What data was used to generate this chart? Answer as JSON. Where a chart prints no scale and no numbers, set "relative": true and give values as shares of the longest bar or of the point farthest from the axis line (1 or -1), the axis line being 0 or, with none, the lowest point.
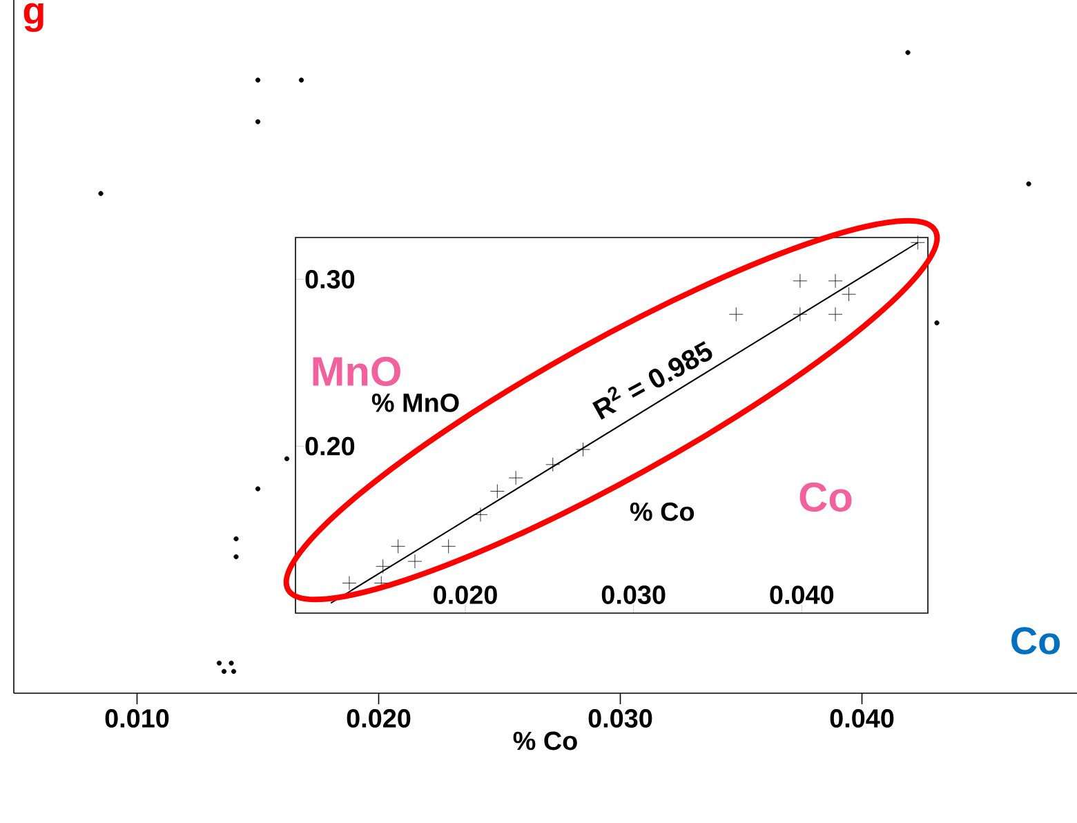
{
  "chart_data": [
    {
      "type": "scatter",
      "xlabel": "% Co",
      "relative": true,
      "tick_labels": "x",
      "marker": "circle",
      "xlim": [
        0.0049,
        0.0489
      ],
      "xticks": [
        {
          "value": 0.01,
          "label": "0.010"
        },
        {
          "value": 0.02,
          "label": "0.020"
        },
        {
          "value": 0.03,
          "label": "0.030"
        },
        {
          "value": 0.04,
          "label": "0.040"
        }
      ],
      "series": [
        {
          "color": "#000000",
          "x": [
            0.0419,
            0.015,
            0.0168,
            0.015,
            0.0085,
            0.0469,
            0.0431,
            0.0162,
            0.015,
            0.0141,
            0.0141,
            0.0134,
            0.0139,
            0.0136,
            0.014
          ],
          "values": [
            1.0,
            0.957,
            0.957,
            0.892,
            0.78,
            0.795,
            0.578,
            0.366,
            0.319,
            0.241,
            0.213,
            0.047,
            0.047,
            0.034,
            0.034
          ]
        }
      ],
      "annotations": [
        "Co",
        "g"
      ]
    },
    {
      "type": "scatter",
      "xlabel": "% Co",
      "ylabel": "% MnO",
      "xlim": [
        0.0099,
        0.0475
      ],
      "ylim": [
        0.1,
        0.325
      ],
      "xticks": [
        {
          "value": 0.02,
          "label": "0.020"
        },
        {
          "value": 0.03,
          "label": "0.030"
        },
        {
          "value": 0.04,
          "label": "0.040"
        }
      ],
      "yticks": [
        {
          "value": 0.2,
          "label": "0.20"
        },
        {
          "value": 0.3,
          "label": "0.30"
        }
      ],
      "series": [
        {
          "marker": "cross",
          "color": "#000000",
          "x": [
            0.0469,
            0.0399,
            0.042,
            0.0428,
            0.0399,
            0.042,
            0.0361,
            0.027,
            0.0252,
            0.023,
            0.0219,
            0.0209,
            0.019,
            0.017,
            0.016,
            0.0151,
            0.0131,
            0.015
          ],
          "values": [
            0.322,
            0.299,
            0.299,
            0.291,
            0.279,
            0.279,
            0.279,
            0.198,
            0.189,
            0.181,
            0.173,
            0.159,
            0.14,
            0.131,
            0.14,
            0.128,
            0.118,
            0.118
          ]
        },
        {
          "type": "line",
          "color": "#000000",
          "x": [
            0.012,
            0.0469
          ],
          "values": [
            0.106,
            0.322
          ]
        }
      ],
      "annotations": [
        "R$^{2}$ = 0.985",
        "MnO",
        "Co"
      ]
    }
  ]
}
